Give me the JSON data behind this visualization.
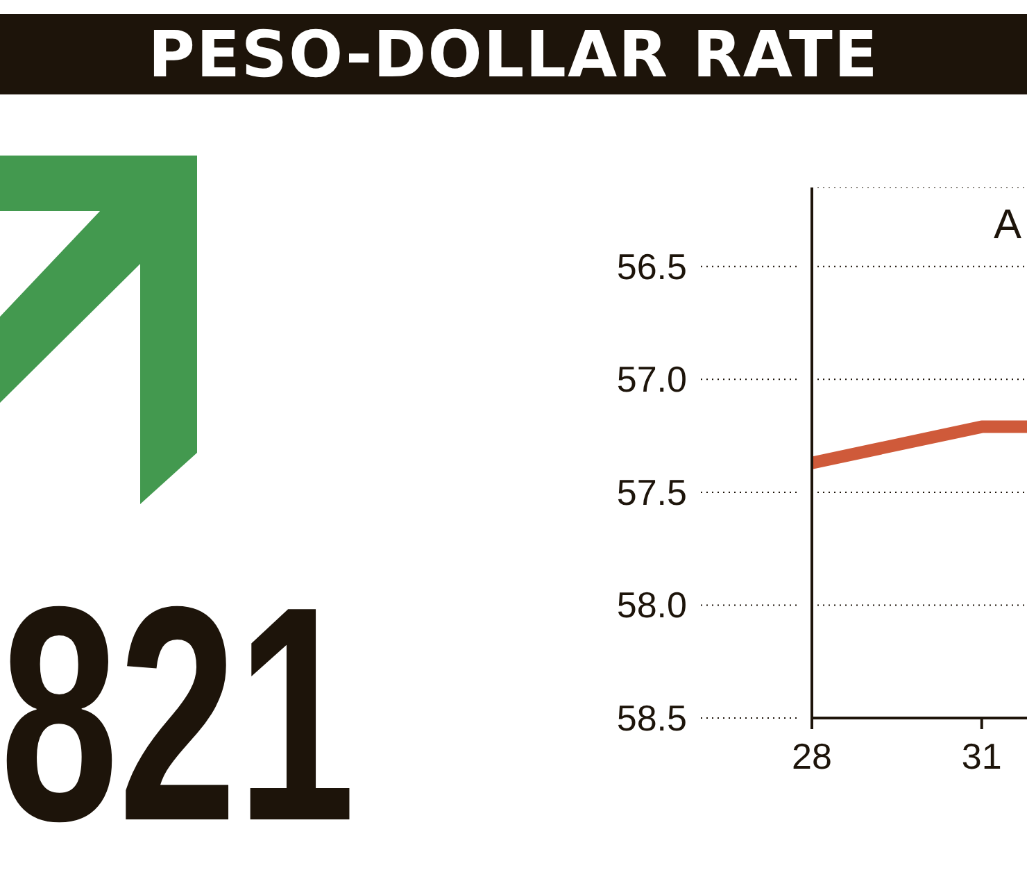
{
  "chart_data": {
    "type": "line",
    "title": "PESO-DOLLAR RATE",
    "annotations": [
      "821",
      "A"
    ],
    "x": [
      28,
      31,
      31.8
    ],
    "series": [
      {
        "color": "#cf5a3a",
        "values": [
          57.37,
          57.21,
          57.21
        ]
      }
    ],
    "xlim": [
      28,
      31.8
    ],
    "xticks": [
      28,
      31
    ],
    "ylim": [
      58.5,
      56.15
    ],
    "yticks": [
      56.5,
      {
        "value": 57,
        "label": "57.0"
      },
      57.5,
      {
        "value": 58,
        "label": "58.0"
      },
      58.5
    ],
    "grid": "y",
    "marker": "none",
    "line_style": "solid"
  }
}
